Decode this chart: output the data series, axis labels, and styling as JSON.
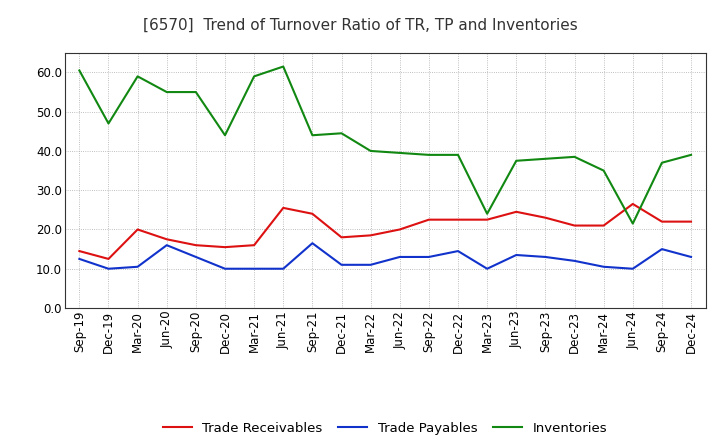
{
  "title": "[6570]  Trend of Turnover Ratio of TR, TP and Inventories",
  "x_labels": [
    "Sep-19",
    "Dec-19",
    "Mar-20",
    "Jun-20",
    "Sep-20",
    "Dec-20",
    "Mar-21",
    "Jun-21",
    "Sep-21",
    "Dec-21",
    "Mar-22",
    "Jun-22",
    "Sep-22",
    "Dec-22",
    "Mar-23",
    "Jun-23",
    "Sep-23",
    "Dec-23",
    "Mar-24",
    "Jun-24",
    "Sep-24",
    "Dec-24"
  ],
  "trade_receivables": [
    14.5,
    12.5,
    20.0,
    17.5,
    16.0,
    15.5,
    16.0,
    25.5,
    24.0,
    18.0,
    18.5,
    20.0,
    22.5,
    22.5,
    22.5,
    24.5,
    23.0,
    21.0,
    21.0,
    26.5,
    22.0,
    22.0
  ],
  "trade_payables": [
    12.5,
    10.0,
    10.5,
    16.0,
    13.0,
    10.0,
    10.0,
    10.0,
    16.5,
    11.0,
    11.0,
    13.0,
    13.0,
    14.5,
    10.0,
    13.5,
    13.0,
    12.0,
    10.5,
    10.0,
    15.0,
    13.0
  ],
  "inventories": [
    60.5,
    47.0,
    59.0,
    55.0,
    55.0,
    44.0,
    59.0,
    61.5,
    44.0,
    44.5,
    40.0,
    39.5,
    39.0,
    39.0,
    24.0,
    37.5,
    38.0,
    38.5,
    35.0,
    21.5,
    37.0,
    39.0
  ],
  "ylim": [
    0,
    65
  ],
  "yticks": [
    0.0,
    10.0,
    20.0,
    30.0,
    40.0,
    50.0,
    60.0
  ],
  "color_tr": "#dd1111",
  "color_tp": "#1133cc",
  "color_inv": "#118811",
  "legend_labels": [
    "Trade Receivables",
    "Trade Payables",
    "Inventories"
  ],
  "background_color": "#ffffff",
  "grid_color": "#aaaaaa",
  "title_fontsize": 11,
  "axis_fontsize": 8.5,
  "legend_fontsize": 9.5
}
